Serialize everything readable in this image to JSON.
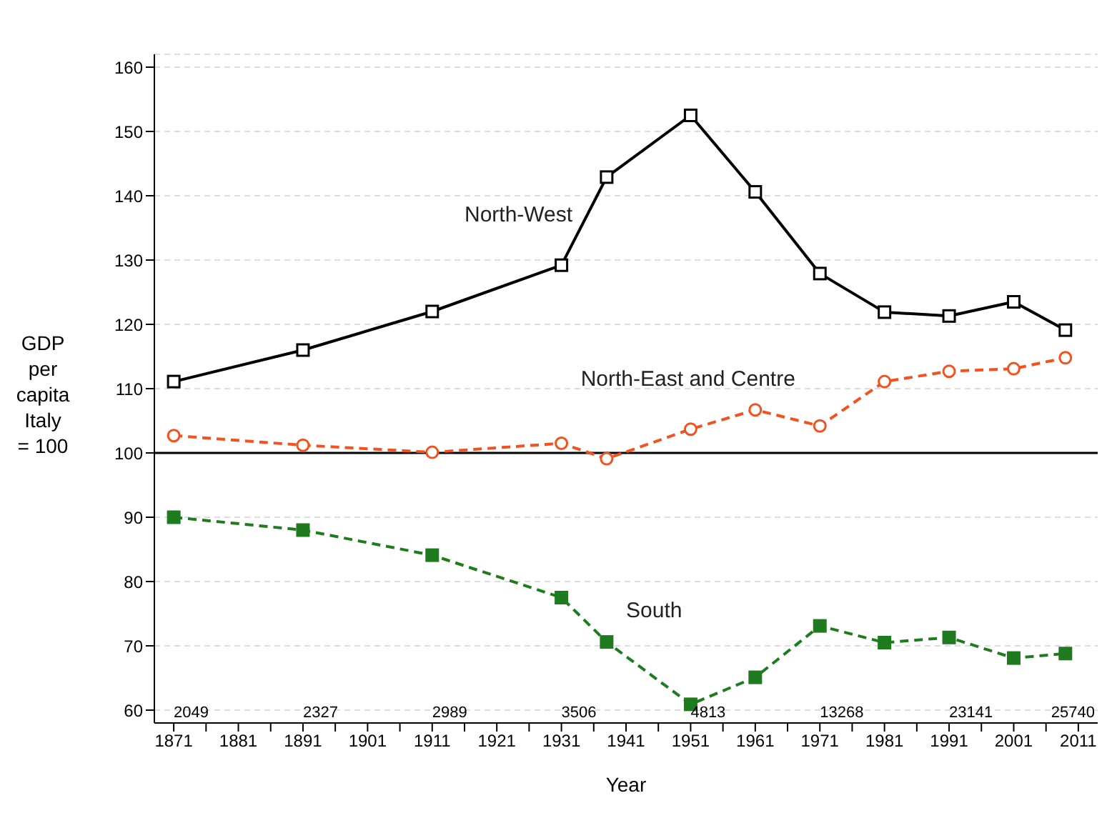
{
  "chart_data": {
    "type": "line",
    "xlabel": "Year",
    "ylabel": "GDP per capita Italy = 100",
    "x": [
      1871,
      1891,
      1911,
      1931,
      1938,
      1951,
      1961,
      1971,
      1981,
      1991,
      2001,
      2009
    ],
    "series": [
      {
        "name": "North-West",
        "color": "#000000",
        "marker": "square",
        "line_style": "solid",
        "values": [
          111.1,
          116.0,
          122.0,
          129.2,
          142.9,
          152.5,
          140.6,
          127.9,
          121.9,
          121.3,
          123.5,
          119.1
        ]
      },
      {
        "name": "North-East and Centre",
        "color": "#f4511e",
        "marker": "circle",
        "line_style": "dashed",
        "values": [
          102.7,
          101.2,
          100.1,
          101.5,
          99.1,
          103.7,
          106.7,
          104.2,
          111.1,
          112.7,
          113.1,
          114.8
        ]
      },
      {
        "name": "South",
        "color": "#1e7b1e",
        "marker": "square",
        "line_style": "dashed",
        "values": [
          90.0,
          88.0,
          84.1,
          77.5,
          70.6,
          60.9,
          65.1,
          73.1,
          70.5,
          71.3,
          68.1,
          68.8
        ]
      }
    ],
    "xlim": [
      1868,
      2014
    ],
    "xticks": [
      1871,
      {
        "value": 1876,
        "label": null
      },
      1881,
      {
        "value": 1886,
        "label": null
      },
      1891,
      {
        "value": 1896,
        "label": null
      },
      1901,
      {
        "value": 1906,
        "label": null
      },
      1911,
      {
        "value": 1916,
        "label": null
      },
      1921,
      {
        "value": 1926,
        "label": null
      },
      1931,
      {
        "value": 1936,
        "label": null
      },
      1941,
      {
        "value": 1946,
        "label": null
      },
      1951,
      {
        "value": 1956,
        "label": null
      },
      1961,
      {
        "value": 1966,
        "label": null
      },
      1971,
      {
        "value": 1976,
        "label": null
      },
      1981,
      {
        "value": 1986,
        "label": null
      },
      1991,
      {
        "value": 1996,
        "label": null
      },
      2001,
      {
        "value": 2006,
        "label": null
      },
      2011
    ],
    "ylim": [
      58,
      162
    ],
    "yticks": [
      60,
      70,
      80,
      90,
      100,
      110,
      120,
      130,
      140,
      150,
      160
    ],
    "grid": "y",
    "legend": false,
    "ref_lines": [
      {
        "axis": "y",
        "value": 100,
        "color": "#000000",
        "line_style": "solid"
      }
    ],
    "annotations": [
      "2049",
      "2327",
      "2989",
      "3506",
      "4813",
      "13268",
      "23141",
      "25740"
    ]
  }
}
